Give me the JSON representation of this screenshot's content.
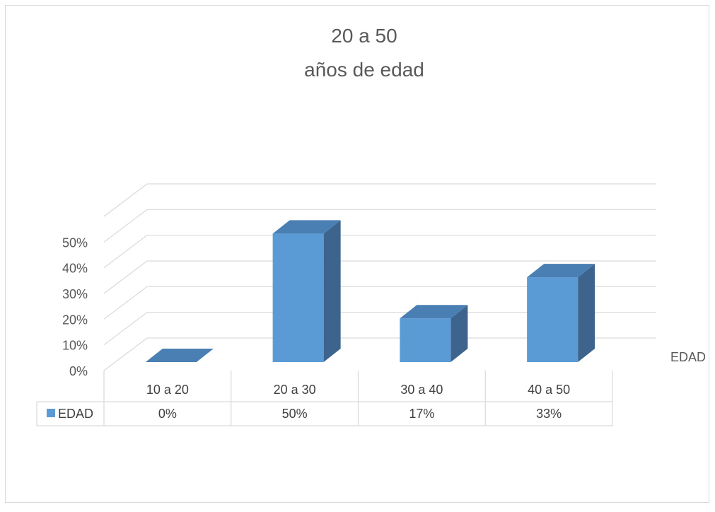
{
  "chart_data": {
    "type": "bar",
    "title_lines": [
      "20 a 50",
      "años de edad"
    ],
    "categories": [
      "10 a 20",
      "20 a 30",
      "30 a 40",
      "40 a 50"
    ],
    "series": [
      {
        "name": "EDAD",
        "values": [
          0,
          0.5,
          0.17,
          0.33
        ],
        "labels": [
          "0%",
          "50%",
          "17%",
          "33%"
        ]
      }
    ],
    "y_ticks": [
      "0%",
      "10%",
      "20%",
      "30%",
      "40%",
      "50%"
    ],
    "ylim": [
      0,
      0.6
    ],
    "depth_axis_label": "EDAD",
    "colors": {
      "bar_front": "#5b9bd5",
      "bar_top": "#4a7fb3",
      "bar_side": "#3c648d",
      "grid": "#d9d9d9",
      "border": "#d9d9d9",
      "text": "#595959"
    },
    "grid": true,
    "data_table": true
  }
}
